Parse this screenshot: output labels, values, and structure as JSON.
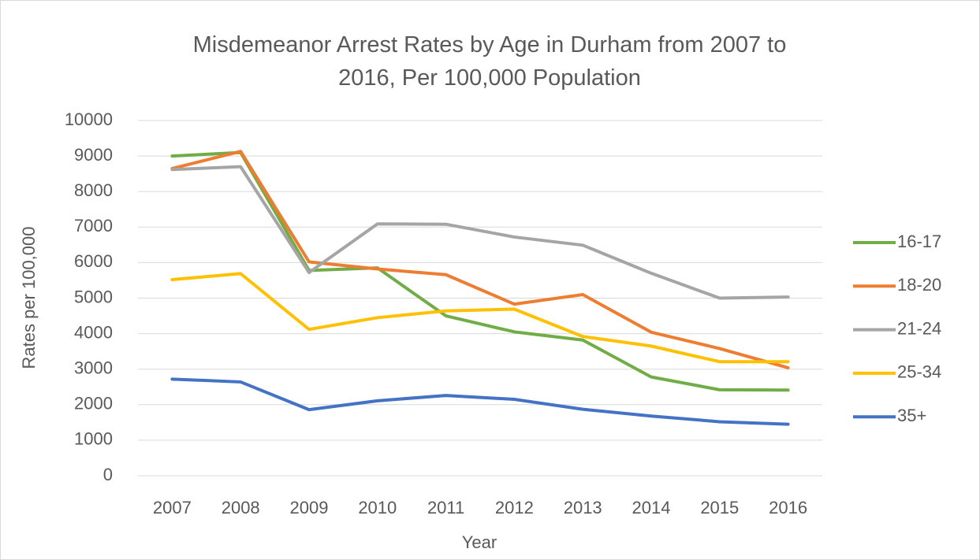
{
  "chart_data": {
    "type": "line",
    "title": "Misdemeanor Arrest Rates by Age in Durham from 2007 to 2016, Per 100,000 Population",
    "x_label": "Year",
    "y_label": "Rates per 100,000",
    "categories": [
      "2007",
      "2008",
      "2009",
      "2010",
      "2011",
      "2012",
      "2013",
      "2014",
      "2015",
      "2016"
    ],
    "series": [
      {
        "name": "16-17",
        "color": "#70ad47",
        "values": [
          9000,
          9100,
          5780,
          5850,
          4500,
          4050,
          3820,
          2780,
          2420,
          2410
        ]
      },
      {
        "name": "18-20",
        "color": "#ed7d31",
        "values": [
          8650,
          9130,
          6020,
          5820,
          5660,
          4830,
          5100,
          4040,
          3580,
          3040
        ]
      },
      {
        "name": "21-24",
        "color": "#a5a5a5",
        "values": [
          8620,
          8700,
          5720,
          7090,
          7080,
          6720,
          6490,
          5700,
          5000,
          5030
        ]
      },
      {
        "name": "25-34",
        "color": "#ffc000",
        "values": [
          5520,
          5690,
          4120,
          4450,
          4640,
          4690,
          3920,
          3650,
          3210,
          3210
        ]
      },
      {
        "name": "35+",
        "color": "#4472c4",
        "values": [
          2720,
          2640,
          1860,
          2110,
          2260,
          2150,
          1870,
          1680,
          1520,
          1450
        ]
      }
    ],
    "ylim": [
      0,
      10000
    ],
    "yticks": [
      0,
      1000,
      2000,
      3000,
      4000,
      5000,
      6000,
      7000,
      8000,
      9000,
      10000
    ],
    "grid": true,
    "legend": "right"
  }
}
